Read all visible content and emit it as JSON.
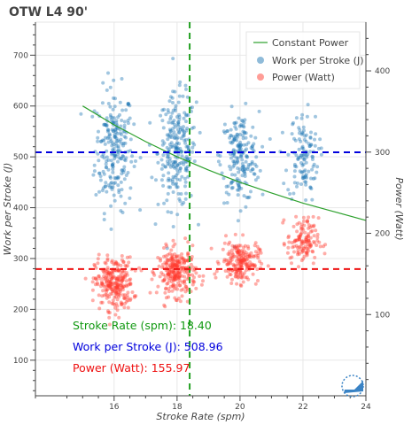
{
  "chart_data": {
    "type": "scatter",
    "title": "OTW L4 90'",
    "xlabel": "Stroke Rate (spm)",
    "ylabel": "Work per Stroke (J)",
    "y2label": "Power (Watt)",
    "xlim": [
      13.5,
      24
    ],
    "ylim": [
      30,
      765
    ],
    "y2lim": [
      0,
      460
    ],
    "x_ticks": [
      16,
      18,
      20,
      22,
      24
    ],
    "y_ticks": [
      100,
      200,
      300,
      400,
      500,
      600,
      700
    ],
    "y2_ticks": [
      100,
      200,
      300,
      400
    ],
    "grid": true,
    "legend_position": "top-right",
    "legend": [
      {
        "label": "Constant Power",
        "type": "line",
        "color": "#2ca02c"
      },
      {
        "label": "Work per Stroke (J)",
        "type": "circle",
        "color": "#1f77b4"
      },
      {
        "label": "Power (Watt)",
        "type": "circle",
        "color": "#ff3b30"
      }
    ],
    "vertical_reference": {
      "x": 18.4,
      "color": "#22a022",
      "dash": "dashed"
    },
    "horizontal_reference_work": {
      "y": 508.96,
      "color": "#0000dd",
      "dash": "dashed"
    },
    "horizontal_reference_power": {
      "y2": 155.97,
      "color": "#ee1111",
      "dash": "dashed"
    },
    "constant_power_curve": {
      "color": "#2ca02c",
      "x": [
        15,
        16,
        17,
        18,
        19,
        20,
        21,
        22,
        23,
        24
      ],
      "y": [
        600,
        563,
        530,
        500,
        474,
        450,
        429,
        409,
        392,
        375
      ]
    },
    "series": [
      {
        "name": "Work per Stroke (J)",
        "axis": "left",
        "color": "#1f77b4",
        "clusters": [
          {
            "x_center": 16.0,
            "x_spread": 0.55,
            "y_center": 515,
            "y_spread": 75,
            "count": 230
          },
          {
            "x_center": 18.0,
            "x_spread": 0.55,
            "y_center": 510,
            "y_spread": 70,
            "count": 240
          },
          {
            "x_center": 20.0,
            "x_spread": 0.55,
            "y_center": 500,
            "y_spread": 55,
            "count": 190
          },
          {
            "x_center": 22.0,
            "x_spread": 0.45,
            "y_center": 500,
            "y_spread": 55,
            "count": 120
          }
        ]
      },
      {
        "name": "Power (Watt)",
        "axis": "right",
        "color": "#ff3b30",
        "clusters": [
          {
            "x_center": 16.0,
            "x_spread": 0.55,
            "y_center": 138,
            "y_spread": 20,
            "count": 260
          },
          {
            "x_center": 18.0,
            "x_spread": 0.55,
            "y_center": 152,
            "y_spread": 18,
            "count": 260
          },
          {
            "x_center": 20.0,
            "x_spread": 0.55,
            "y_center": 165,
            "y_spread": 16,
            "count": 200
          },
          {
            "x_center": 22.0,
            "x_spread": 0.45,
            "y_center": 190,
            "y_spread": 18,
            "count": 130
          }
        ]
      }
    ],
    "annotations": [
      {
        "text": "Stroke Rate (spm): 18.40",
        "color": "#119911"
      },
      {
        "text": "Work per Stroke (J): 508.96",
        "color": "#0000dd"
      },
      {
        "text": "Power (Watt): 155.97",
        "color": "#ee1111"
      }
    ]
  }
}
